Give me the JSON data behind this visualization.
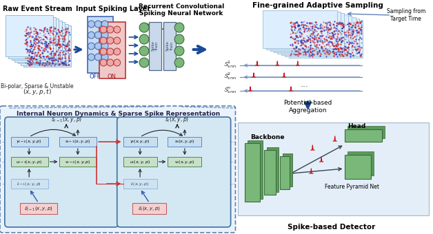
{
  "bg_color": "#f0f4f8",
  "top_section": {
    "raw_event_label": "Raw Event Stream",
    "raw_event_sublabel": "Bi-polar, Sparse & Unstable",
    "raw_event_eq": "$(x, y, p, t)$",
    "input_layer_label": "Input Spiking Layer",
    "off_label": "OFF",
    "on_label": "ON",
    "recurrent_label": "Recurrent Convolutional\nSpiking Neural Network",
    "fine_grained_label": "Fine-grained Adaptive Sampling",
    "sampling_label": "Sampling from\nTarget Time",
    "s1_label": "$\\mathcal{S}^1_{\\mathrm{snn}}$",
    "s2_label": "$\\mathcal{S}^2_{\\mathrm{snn}}$",
    "sn_label": "$\\mathcal{S}^n_{\\mathrm{snn}}$",
    "potential_label": "Potential-based\nAggregation",
    "spike_detector_label": "Spike-based Detector",
    "backbone_label": "Backbone",
    "head_label": "Head",
    "fpn_label": "Feature Pyramid Net"
  },
  "bottom_section": {
    "title": "Internal Neuron Dynamics & Sparse Spike Representation",
    "gamma_t1": "$\\gamma_{t-1}(x,y,p)$",
    "u_t1": "$u_{t-1}(x,y,p)$",
    "v_t1": "$v_{t-1}(x,y,p)$",
    "s_t1_inner": "$s_{t-1}(x,y,p)$",
    "l_t1": "$l_{t-1}(x,y,p)$",
    "eps_t1": "$\\mathcal{E}_{t-1}(x,y,p)$",
    "s_t1_top": "$s_{t-1}(x,y,p)$",
    "gamma_t": "$\\gamma_t(x,y,p)$",
    "u_t": "$u_t(x,y,p)$",
    "v_t": "$v_t(x,y,p)$",
    "s_t_inner": "$s_t(x,y,p)$",
    "l_t": "$l_t(x,y,p)$",
    "eps_t": "$\\mathcal{E}_t(x,y,p)$",
    "s_t_top": "$s_t(x,y,p)$"
  },
  "colors": {
    "blue_arrow": "#3a6abf",
    "blue_border": "#5a8ad0",
    "red_border": "#d05050",
    "green_fill": "#7ab87a",
    "green_dark": "#3a6a3a",
    "light_blue_fill": "#c8dff0",
    "light_blue_bg": "#d8ecf8",
    "light_green_fill": "#c8e0c8",
    "pink_fill": "#f5d0d0",
    "pink_border": "#c06060",
    "dashed_blue": "#5a80b0",
    "red_spike": "#cc1010",
    "dark_blue": "#1a4a9a",
    "gray_blue": "#8090b0",
    "neuron_block_bg": "#d4e8f4",
    "neuron_block_border": "#4070a0",
    "outer_dashed_bg": "#eaf2fb"
  }
}
